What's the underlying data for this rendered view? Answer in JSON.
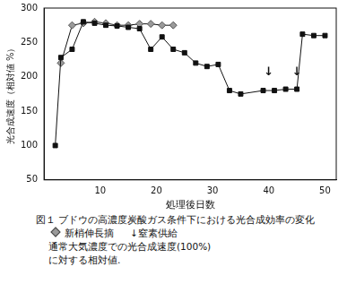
{
  "chart_data": {
    "type": "line",
    "title": "図１ ブドウの高濃度炭酸ガス条件下における光合成効率の変化",
    "x_label": "処理後日数",
    "y_label": "光合成速度（相対値 %）",
    "series": [
      {
        "color": "#111111",
        "marker": "square",
        "line_style": "solid",
        "x": [
          2,
          3,
          5,
          7,
          9,
          11,
          13,
          15,
          17,
          19,
          21,
          23,
          25,
          27,
          29,
          31,
          33,
          35,
          39,
          41,
          43,
          45,
          46,
          48,
          50
        ],
        "values": [
          100,
          228,
          240,
          280,
          278,
          275,
          274,
          272,
          270,
          240,
          258,
          240,
          235,
          220,
          215,
          218,
          180,
          175,
          180,
          180,
          182,
          182,
          262,
          260,
          260
        ]
      },
      {
        "name": "新梢伸長摘",
        "color": "#9a9a9a",
        "marker": "diamond",
        "line_style": "solid",
        "x": [
          3,
          5,
          7,
          9,
          11,
          13,
          15,
          17,
          19,
          21,
          23
        ],
        "values": [
          220,
          275,
          278,
          280,
          278,
          275,
          275,
          277,
          277,
          275,
          275
        ]
      }
    ],
    "annotations": [
      {
        "text": "↓",
        "x": 40,
        "y": 198
      },
      {
        "text": "↓",
        "x": 45,
        "y": 198
      }
    ],
    "annotation_legend": "↓窒素供給",
    "caption": [
      "通常大気濃度での光合成速度(100%)",
      "に対する相対値."
    ],
    "xlim": [
      0,
      52
    ],
    "xticks": [
      10,
      20,
      30,
      40,
      50
    ],
    "ylim": [
      50,
      300
    ],
    "yticks": [
      50,
      100,
      150,
      200,
      250,
      300
    ],
    "grid": false
  }
}
